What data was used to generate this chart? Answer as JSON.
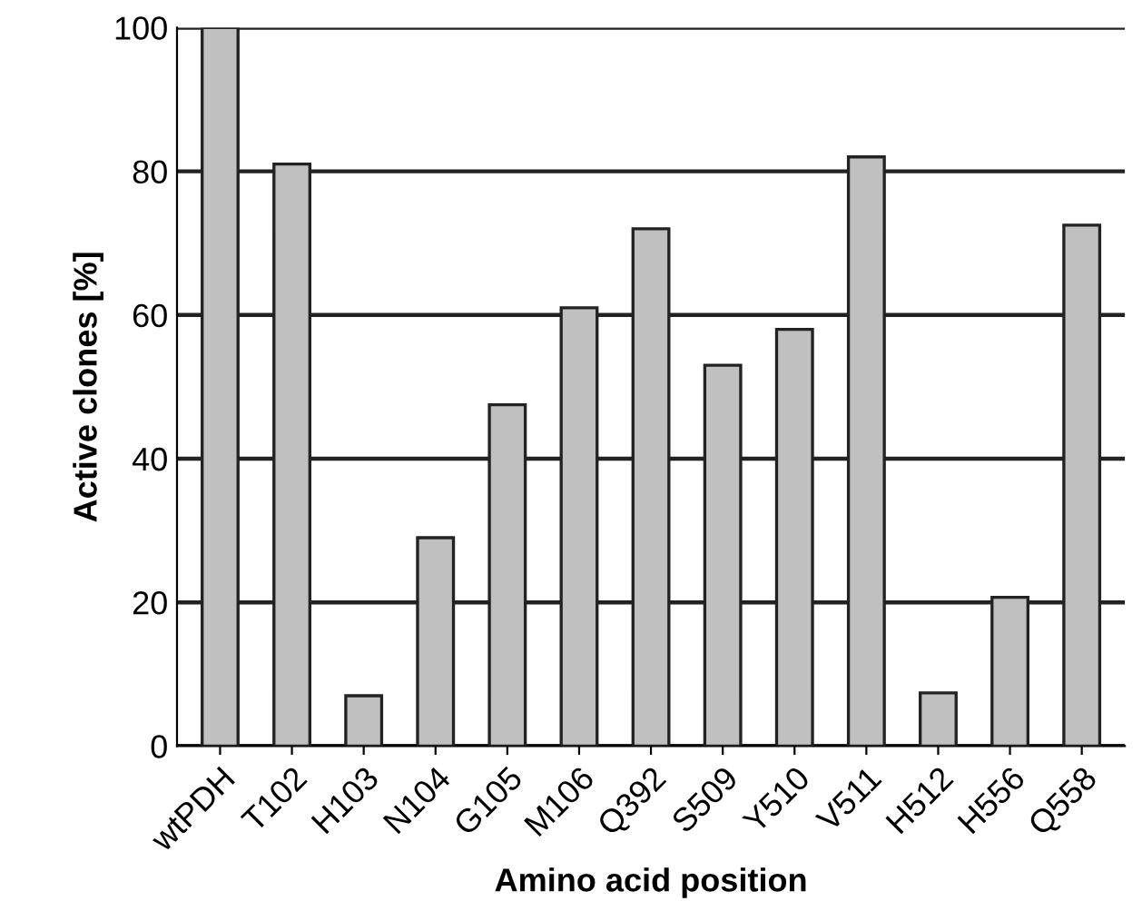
{
  "chart_data": {
    "type": "bar",
    "xlabel": "Amino acid position",
    "ylabel": "Active clones [%]",
    "categories": [
      "wtPDH",
      "T102",
      "H103",
      "N104",
      "G105",
      "M106",
      "Q392",
      "S509",
      "Y510",
      "V511",
      "H512",
      "H556",
      "Q558"
    ],
    "values": [
      100,
      81,
      7,
      29,
      47.5,
      61,
      72,
      53,
      58,
      82,
      7.4,
      20.7,
      72.5
    ],
    "color": "#c0c0c0",
    "ylim": [
      0,
      100
    ],
    "yticks": [
      0,
      20,
      40,
      60,
      80,
      100
    ],
    "grid": "y",
    "legend": false
  }
}
